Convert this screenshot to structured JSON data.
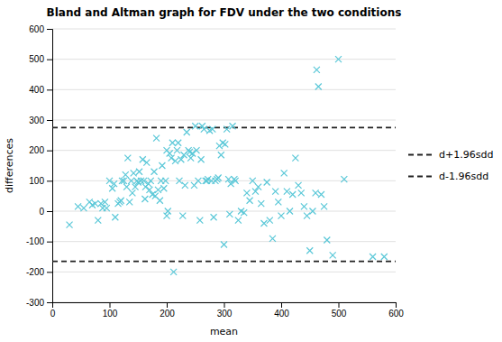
{
  "chart_data": {
    "type": "scatter",
    "title": "Bland and Altman graph for FDV under the two conditions",
    "xlabel": "mean",
    "ylabel": "differences",
    "xlim": [
      0,
      600
    ],
    "ylim": [
      -300,
      600
    ],
    "xticks": [
      0,
      100,
      200,
      300,
      400,
      500,
      600
    ],
    "yticks": [
      -300,
      -200,
      -100,
      0,
      100,
      200,
      300,
      400,
      500,
      600
    ],
    "grid": "y",
    "legend": "right",
    "x": [
      30,
      45,
      55,
      65,
      70,
      75,
      80,
      85,
      88,
      92,
      95,
      100,
      105,
      108,
      110,
      115,
      118,
      120,
      122,
      125,
      128,
      130,
      132,
      135,
      138,
      140,
      142,
      145,
      148,
      150,
      152,
      155,
      158,
      160,
      162,
      163,
      165,
      168,
      170,
      172,
      175,
      178,
      180,
      182,
      185,
      188,
      190,
      192,
      195,
      198,
      200,
      200,
      202,
      205,
      208,
      210,
      212,
      215,
      218,
      220,
      222,
      225,
      228,
      230,
      232,
      235,
      238,
      240,
      242,
      245,
      248,
      250,
      252,
      255,
      258,
      260,
      262,
      265,
      268,
      270,
      272,
      275,
      278,
      280,
      282,
      285,
      288,
      290,
      292,
      295,
      298,
      300,
      302,
      305,
      308,
      310,
      312,
      315,
      318,
      320,
      325,
      330,
      335,
      340,
      345,
      350,
      355,
      360,
      365,
      370,
      375,
      380,
      385,
      390,
      395,
      400,
      405,
      410,
      415,
      420,
      425,
      430,
      435,
      440,
      445,
      450,
      455,
      460,
      462,
      465,
      470,
      475,
      480,
      490,
      500,
      510,
      560,
      580
    ],
    "series": [
      {
        "color": "#5BC8D8",
        "marker": "x",
        "values": [
          -45,
          15,
          10,
          30,
          20,
          25,
          -30,
          25,
          10,
          30,
          10,
          100,
          75,
          90,
          -20,
          25,
          30,
          35,
          100,
          100,
          120,
          80,
          175,
          30,
          100,
          60,
          125,
          80,
          100,
          95,
          130,
          100,
          170,
          100,
          40,
          80,
          160,
          90,
          70,
          100,
          55,
          130,
          50,
          240,
          70,
          35,
          100,
          150,
          75,
          100,
          -15,
          200,
          0,
          190,
          175,
          225,
          -200,
          165,
          200,
          225,
          100,
          170,
          -15,
          185,
          85,
          260,
          200,
          195,
          175,
          190,
          85,
          280,
          200,
          100,
          -30,
          170,
          280,
          270,
          100,
          100,
          105,
          265,
          100,
          270,
          -20,
          100,
          105,
          110,
          215,
          185,
          225,
          -110,
          220,
          270,
          105,
          -10,
          90,
          280,
          105,
          100,
          -30,
          0,
          -5,
          60,
          35,
          100,
          65,
          80,
          25,
          -40,
          95,
          -30,
          -90,
          65,
          30,
          -15,
          125,
          65,
          0,
          55,
          175,
          85,
          60,
          15,
          -15,
          -130,
          0,
          60,
          465,
          410,
          55,
          15,
          -95,
          -145,
          500,
          105,
          -150,
          -150
        ]
      }
    ],
    "reference_lines": [
      {
        "name": "d+1.96sdd",
        "value": 275,
        "color": "#222222",
        "line_style": "dashed"
      },
      {
        "name": "d-1.96sdd",
        "value": -165,
        "color": "#222222",
        "line_style": "dashed"
      }
    ]
  }
}
